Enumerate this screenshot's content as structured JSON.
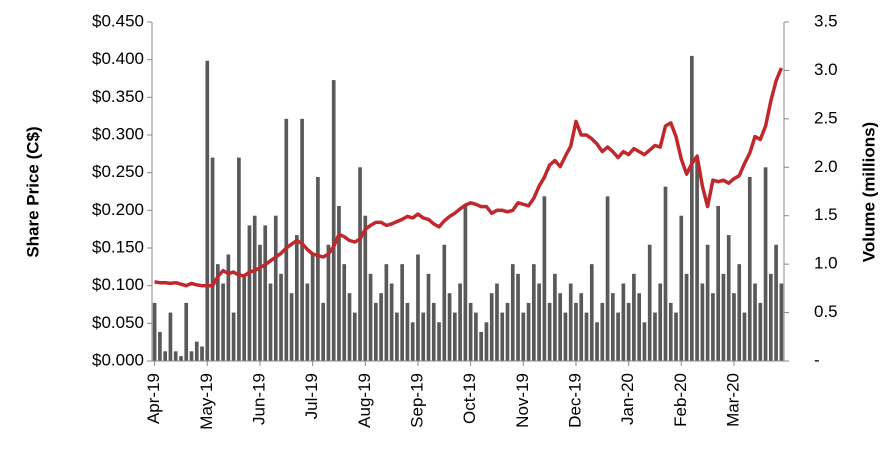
{
  "chart_data": {
    "type": "bar_line",
    "y_label": "Share Price (C$)",
    "y2_label": "Volume (millions)",
    "categories": [
      "Apr-19",
      null,
      null,
      null,
      null,
      null,
      null,
      null,
      null,
      null,
      "May-19",
      null,
      null,
      null,
      null,
      null,
      null,
      null,
      null,
      null,
      "Jun-19",
      null,
      null,
      null,
      null,
      null,
      null,
      null,
      null,
      null,
      "Jul-19",
      null,
      null,
      null,
      null,
      null,
      null,
      null,
      null,
      null,
      "Aug-19",
      null,
      null,
      null,
      null,
      null,
      null,
      null,
      null,
      null,
      "Sep-19",
      null,
      null,
      null,
      null,
      null,
      null,
      null,
      null,
      null,
      "Oct-19",
      null,
      null,
      null,
      null,
      null,
      null,
      null,
      null,
      null,
      "Nov-19",
      null,
      null,
      null,
      null,
      null,
      null,
      null,
      null,
      null,
      "Dec-19",
      null,
      null,
      null,
      null,
      null,
      null,
      null,
      null,
      null,
      "Jan-20",
      null,
      null,
      null,
      null,
      null,
      null,
      null,
      null,
      null,
      "Feb-20",
      null,
      null,
      null,
      null,
      null,
      null,
      null,
      null,
      null,
      "Mar-20",
      null,
      null,
      null,
      null,
      null,
      null,
      null,
      null,
      null
    ],
    "series": [
      {
        "name": "Volume",
        "color": "#595959",
        "axis": "y2",
        "kind": "bar",
        "values": [
          0.6,
          0.3,
          0.1,
          0.5,
          0.1,
          0.05,
          0.6,
          0.1,
          0.2,
          0.15,
          3.1,
          2.1,
          1.0,
          0.8,
          1.1,
          0.5,
          2.1,
          0.9,
          1.4,
          1.5,
          1.2,
          1.4,
          0.8,
          1.5,
          0.9,
          2.5,
          0.7,
          1.3,
          2.5,
          0.8,
          1.1,
          1.9,
          0.6,
          1.2,
          2.9,
          1.6,
          1.0,
          0.7,
          0.5,
          2.0,
          1.5,
          0.9,
          0.6,
          0.7,
          1.0,
          0.8,
          0.5,
          1.0,
          0.6,
          0.4,
          1.1,
          0.5,
          0.9,
          0.6,
          0.4,
          1.2,
          0.7,
          0.5,
          0.8,
          1.6,
          0.6,
          0.5,
          0.3,
          0.4,
          0.7,
          0.8,
          0.5,
          0.6,
          1.0,
          0.9,
          0.5,
          0.6,
          1.0,
          0.8,
          1.7,
          0.6,
          0.9,
          0.7,
          0.5,
          0.8,
          0.6,
          0.7,
          0.5,
          1.0,
          0.4,
          0.6,
          1.7,
          0.7,
          0.5,
          0.8,
          0.6,
          0.9,
          0.7,
          0.4,
          1.2,
          0.5,
          0.8,
          1.8,
          0.6,
          0.5,
          1.5,
          0.9,
          3.15,
          2.1,
          0.8,
          1.2,
          0.7,
          1.6,
          0.9,
          1.3,
          0.7,
          1.0,
          0.5,
          1.9,
          0.8,
          0.6,
          2.0,
          0.9,
          1.2,
          0.8
        ]
      },
      {
        "name": "Share Price",
        "color": "#c0282d",
        "kind": "line",
        "values": [
          0.105,
          0.104,
          0.104,
          0.103,
          0.104,
          0.102,
          0.1,
          0.103,
          0.101,
          0.1,
          0.1,
          0.1,
          0.112,
          0.12,
          0.116,
          0.118,
          0.114,
          0.113,
          0.118,
          0.12,
          0.124,
          0.128,
          0.133,
          0.138,
          0.143,
          0.15,
          0.155,
          0.16,
          0.156,
          0.148,
          0.142,
          0.14,
          0.138,
          0.142,
          0.152,
          0.168,
          0.165,
          0.16,
          0.158,
          0.162,
          0.175,
          0.18,
          0.184,
          0.184,
          0.18,
          0.182,
          0.185,
          0.188,
          0.192,
          0.19,
          0.195,
          0.19,
          0.188,
          0.182,
          0.178,
          0.186,
          0.192,
          0.196,
          0.202,
          0.207,
          0.21,
          0.208,
          0.205,
          0.205,
          0.196,
          0.2,
          0.2,
          0.198,
          0.2,
          0.21,
          0.208,
          0.206,
          0.216,
          0.232,
          0.244,
          0.26,
          0.266,
          0.258,
          0.272,
          0.285,
          0.318,
          0.3,
          0.3,
          0.295,
          0.288,
          0.278,
          0.284,
          0.278,
          0.27,
          0.278,
          0.274,
          0.282,
          0.278,
          0.274,
          0.28,
          0.286,
          0.284,
          0.312,
          0.316,
          0.298,
          0.268,
          0.248,
          0.262,
          0.272,
          0.232,
          0.205,
          0.24,
          0.238,
          0.24,
          0.236,
          0.242,
          0.246,
          0.262,
          0.276,
          0.298,
          0.294,
          0.312,
          0.345,
          0.372,
          0.389
        ]
      }
    ],
    "ylim": [
      0,
      0.45
    ],
    "yticks": [
      {
        "value": 0,
        "label": "$0.000"
      },
      {
        "value": 0.05,
        "label": "$0.050"
      },
      {
        "value": 0.1,
        "label": "$0.100"
      },
      {
        "value": 0.15,
        "label": "$0.150"
      },
      {
        "value": 0.2,
        "label": "$0.200"
      },
      {
        "value": 0.25,
        "label": "$0.250"
      },
      {
        "value": 0.3,
        "label": "$0.300"
      },
      {
        "value": 0.35,
        "label": "$0.350"
      },
      {
        "value": 0.4,
        "label": "$0.400"
      },
      {
        "value": 0.45,
        "label": "$0.450"
      }
    ],
    "y2lim": [
      0,
      3.5
    ],
    "y2ticks": [
      {
        "value": 0,
        "label": "-"
      },
      0.5,
      {
        "value": 1,
        "label": "1.0"
      },
      1.5,
      {
        "value": 2,
        "label": "2.0"
      },
      2.5,
      {
        "value": 3,
        "label": "3.0"
      },
      3.5
    ]
  }
}
